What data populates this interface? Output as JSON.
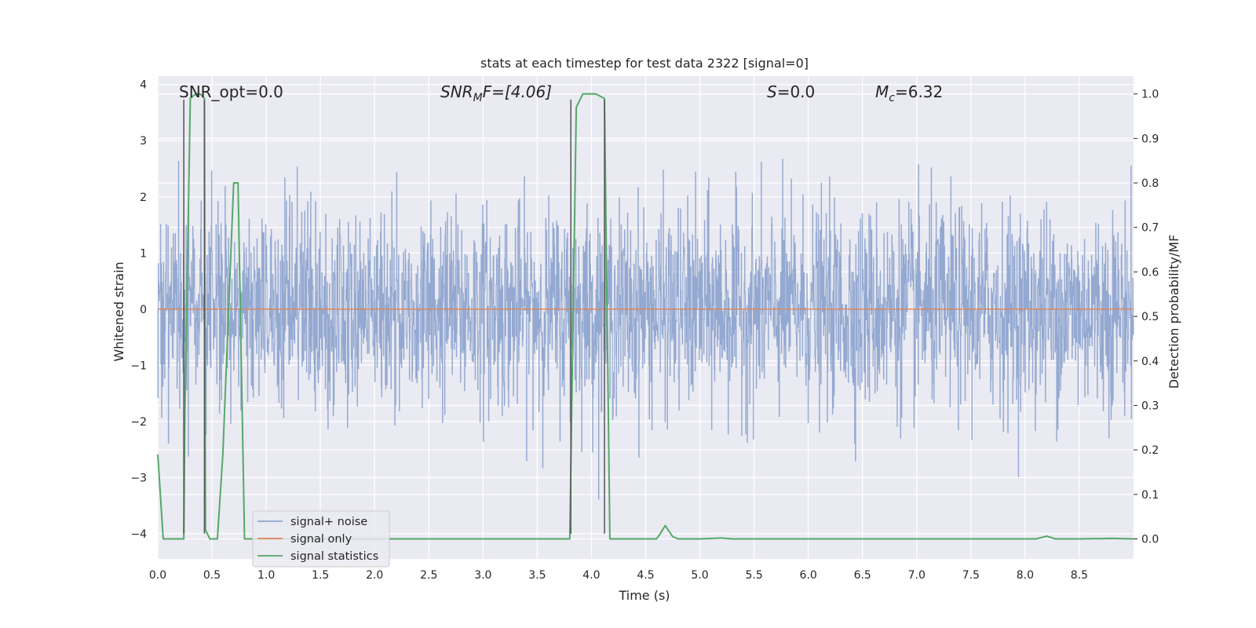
{
  "chart_data": {
    "type": "line",
    "title": "stats at each timestep for test data 2322 [signal=0]",
    "xlabel": "Time (s)",
    "ylabel_left": "Whitened strain",
    "ylabel_right": "Detection probability/MF",
    "xlim": [
      0.0,
      9.0
    ],
    "ylim_left": [
      -4.45,
      4.15
    ],
    "ylim_right": [
      -0.045,
      1.04
    ],
    "x_ticks": [
      "0.0",
      "0.5",
      "1.0",
      "1.5",
      "2.0",
      "2.5",
      "3.0",
      "3.5",
      "4.0",
      "4.5",
      "5.0",
      "5.5",
      "6.0",
      "6.5",
      "7.0",
      "7.5",
      "8.0",
      "8.5"
    ],
    "y_ticks_left": [
      "4",
      "3",
      "2",
      "1",
      "0",
      "−1",
      "−2",
      "−3",
      "−4"
    ],
    "y_ticks_right": [
      "1.0",
      "0.9",
      "0.8",
      "0.7",
      "0.6",
      "0.5",
      "0.4",
      "0.3",
      "0.2",
      "0.1",
      "0.0"
    ],
    "grid": true,
    "legend_position": "lower-left",
    "colors": {
      "background": "#eaeaf2",
      "grid": "#ffffff",
      "noise": "#8fa5cf",
      "signal_only": "#dd8452",
      "statistics": "#55a868",
      "vlines": "#555555"
    },
    "annotations": {
      "snr_opt": "SNR_opt=0.0",
      "snr_mf_base": "SNR",
      "snr_mf_sub": "M",
      "snr_mf_rest": "F=[4.06]",
      "s_sym": "S",
      "s_val": "=0.0",
      "mc_base": "M",
      "mc_sub": "c",
      "mc_val": "=6.32"
    },
    "series": [
      {
        "name": "signal+ noise",
        "axis": "left",
        "kind": "noise",
        "n_samples": 2600,
        "amplitude_std": 0.9,
        "observed_range": [
          -4.0,
          3.75
        ]
      },
      {
        "name": "signal only",
        "axis": "left",
        "x": [
          0.0,
          9.0
        ],
        "y": [
          0.0,
          0.0
        ]
      },
      {
        "name": "signal statistics",
        "axis": "right",
        "x": [
          0.0,
          0.05,
          0.24,
          0.25,
          0.3,
          0.35,
          0.39,
          0.43,
          0.44,
          0.48,
          0.55,
          0.6,
          0.7,
          0.74,
          0.8,
          0.85,
          3.8,
          3.86,
          3.92,
          4.04,
          4.12,
          4.17,
          4.3,
          4.6,
          4.63,
          4.68,
          4.75,
          4.8,
          5.0,
          5.2,
          5.3,
          8.1,
          8.2,
          8.28,
          8.5,
          8.8,
          9.0
        ],
        "y": [
          0.19,
          0.0,
          0.0,
          0.28,
          0.99,
          1.0,
          1.0,
          0.99,
          0.02,
          0.0,
          0.0,
          0.19,
          0.8,
          0.8,
          0.0,
          0.0,
          0.0,
          0.97,
          1.0,
          1.0,
          0.99,
          0.0,
          0.0,
          0.0,
          0.01,
          0.03,
          0.005,
          0.0,
          0.0,
          0.002,
          0.0,
          0.0,
          0.006,
          0.0,
          0.0,
          0.001,
          0.0
        ]
      }
    ],
    "vertical_lines_x": [
      0.24,
      0.43,
      3.81,
      4.12
    ],
    "legend": [
      {
        "label": "signal+ noise",
        "color": "#8fa5cf"
      },
      {
        "label": "signal only",
        "color": "#dd8452"
      },
      {
        "label": "signal statistics",
        "color": "#55a868"
      }
    ]
  }
}
